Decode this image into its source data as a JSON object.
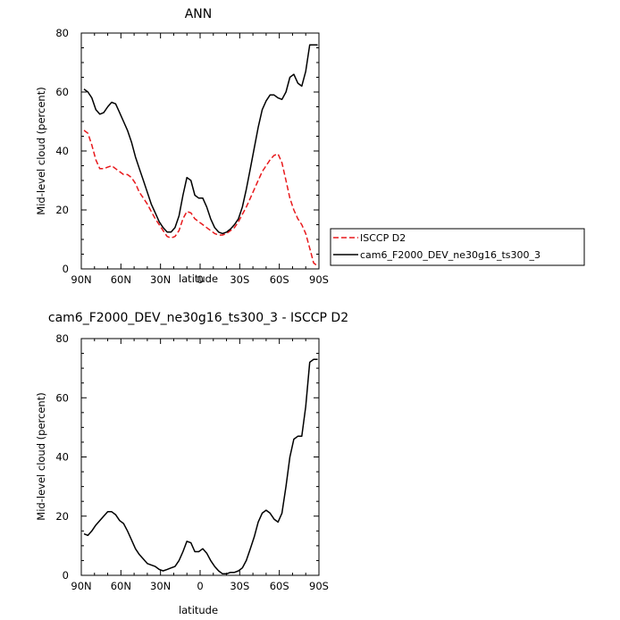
{
  "chart_data": [
    {
      "type": "line",
      "title": "ANN",
      "xlabel": "latitude",
      "ylabel": "Mid-level cloud (percent)",
      "xlim": [
        90,
        -90
      ],
      "ylim": [
        0,
        80
      ],
      "xticks": [
        90,
        60,
        30,
        0,
        -30,
        -60,
        -90
      ],
      "xtick_labels": [
        "90N",
        "60N",
        "30N",
        "0",
        "30S",
        "60S",
        "90S"
      ],
      "yticks": [
        0,
        20,
        40,
        60,
        80
      ],
      "ytick_labels": [
        "0",
        "20",
        "40",
        "60",
        "80"
      ],
      "legend_position": "right",
      "series": [
        {
          "name": "ISCCP D2",
          "color": "#e8191c",
          "dash": "dashed",
          "x": [
            88,
            85,
            82,
            79,
            76,
            73,
            70,
            67,
            64,
            61,
            58,
            55,
            52,
            49,
            46,
            43,
            40,
            37,
            34,
            31,
            28,
            25,
            22,
            19,
            16,
            13,
            10,
            7,
            4,
            1,
            -2,
            -5,
            -8,
            -11,
            -14,
            -17,
            -20,
            -23,
            -26,
            -29,
            -32,
            -35,
            -38,
            -41,
            -44,
            -47,
            -50,
            -53,
            -56,
            -59,
            -62,
            -65,
            -68,
            -71,
            -74,
            -77,
            -80,
            -83,
            -86,
            -89
          ],
          "y": [
            47,
            46,
            42,
            37,
            34,
            34,
            34.5,
            35,
            34,
            33,
            32,
            32,
            31,
            29,
            26,
            24,
            22,
            19.5,
            17,
            15,
            13,
            11,
            10.5,
            11,
            13,
            17,
            19.5,
            19,
            17,
            16,
            15,
            14,
            13,
            12,
            11.5,
            11.5,
            12,
            13,
            14,
            16,
            18.5,
            21,
            24,
            27,
            30,
            33,
            35,
            37,
            38.5,
            39,
            36,
            30,
            24,
            20,
            17,
            15,
            12,
            7,
            2,
            1
          ]
        },
        {
          "name": "cam6_F2000_DEV_ne30g16_ts300_3",
          "color": "#000000",
          "dash": "solid",
          "x": [
            88,
            85,
            82,
            79,
            76,
            73,
            70,
            67,
            64,
            61,
            58,
            55,
            52,
            49,
            46,
            43,
            40,
            37,
            34,
            31,
            28,
            25,
            22,
            19,
            16,
            13,
            10,
            7,
            4,
            1,
            -2,
            -5,
            -8,
            -11,
            -14,
            -17,
            -20,
            -23,
            -26,
            -29,
            -32,
            -35,
            -38,
            -41,
            -44,
            -47,
            -50,
            -53,
            -56,
            -59,
            -62,
            -65,
            -68,
            -71,
            -74,
            -77,
            -80,
            -83,
            -86,
            -89
          ],
          "y": [
            61,
            60,
            58,
            54,
            52.5,
            53,
            55,
            56.5,
            56,
            53,
            50,
            47,
            43,
            38,
            34,
            30,
            26,
            22,
            19,
            16,
            14,
            12.5,
            12.5,
            14,
            18,
            25,
            31,
            30,
            25,
            24,
            24,
            21,
            17,
            14,
            12.5,
            12,
            12.5,
            13.5,
            15,
            17,
            21,
            27,
            34,
            41,
            48,
            54,
            57,
            59,
            59,
            58,
            57.5,
            60,
            65,
            66,
            63,
            62,
            67,
            76,
            76,
            76
          ]
        }
      ]
    },
    {
      "type": "line",
      "title": "cam6_F2000_DEV_ne30g16_ts300_3 - ISCCP D2",
      "xlabel": "latitude",
      "ylabel": "Mid-level cloud (percent)",
      "xlim": [
        90,
        -90
      ],
      "ylim": [
        0,
        80
      ],
      "xticks": [
        90,
        60,
        30,
        0,
        -30,
        -60,
        -90
      ],
      "xtick_labels": [
        "90N",
        "60N",
        "30N",
        "0",
        "30S",
        "60S",
        "90S"
      ],
      "yticks": [
        0,
        20,
        40,
        60,
        80
      ],
      "ytick_labels": [
        "0",
        "20",
        "40",
        "60",
        "80"
      ],
      "series": [
        {
          "color": "#000000",
          "dash": "solid",
          "x": [
            88,
            85,
            82,
            79,
            76,
            73,
            70,
            67,
            64,
            61,
            58,
            55,
            52,
            49,
            46,
            43,
            40,
            37,
            34,
            31,
            28,
            25,
            22,
            19,
            16,
            13,
            10,
            7,
            4,
            1,
            -2,
            -5,
            -8,
            -11,
            -14,
            -17,
            -20,
            -23,
            -26,
            -29,
            -32,
            -35,
            -38,
            -41,
            -44,
            -47,
            -50,
            -53,
            -56,
            -59,
            -62,
            -65,
            -68,
            -71,
            -74,
            -77,
            -80,
            -83,
            -86,
            -89
          ],
          "y": [
            14,
            13.5,
            15,
            17,
            18.5,
            20,
            21.5,
            21.5,
            20.5,
            18.5,
            17.5,
            15,
            12,
            9,
            7,
            5.5,
            4,
            3.5,
            3,
            2,
            1.5,
            2,
            2.5,
            3,
            5,
            8,
            11.5,
            11,
            8,
            8,
            9,
            7.5,
            5,
            3,
            1.5,
            0.5,
            0.5,
            1,
            1,
            1.5,
            2.5,
            5,
            9,
            13,
            18,
            21,
            22,
            21,
            19,
            18,
            21,
            30,
            40,
            46,
            47,
            47,
            57,
            72,
            73,
            73
          ]
        }
      ]
    }
  ]
}
